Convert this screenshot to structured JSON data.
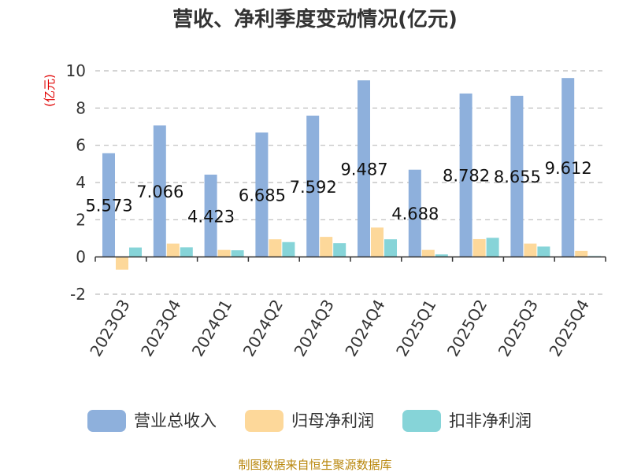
{
  "chart_data": {
    "type": "bar",
    "title": "营收、净利季度变动情况(亿元)",
    "ylabel": "(亿元)",
    "categories": [
      "2023Q3",
      "2023Q4",
      "2024Q1",
      "2024Q2",
      "2024Q3",
      "2024Q4",
      "2025Q1",
      "2025Q2",
      "2025Q3",
      "2025Q4"
    ],
    "ylim": [
      -2,
      10
    ],
    "yticks": [
      -2,
      0,
      2,
      4,
      6,
      8,
      10
    ],
    "grid": true,
    "legend_position": "bottom",
    "series": [
      {
        "name": "营业总收入",
        "color": "#8eb0dc",
        "values": [
          5.573,
          7.066,
          4.423,
          6.685,
          7.592,
          9.487,
          4.688,
          8.782,
          8.655,
          9.612
        ],
        "labels": [
          "5.573",
          "7.066",
          "4.423",
          "6.685",
          "7.592",
          "9.487",
          "4.688",
          "8.782",
          "8.655",
          "9.612"
        ]
      },
      {
        "name": "归母净利润",
        "color": "#fdd89a",
        "values": [
          -0.68,
          0.72,
          0.38,
          0.95,
          1.08,
          1.58,
          0.38,
          0.96,
          0.72,
          0.33
        ]
      },
      {
        "name": "扣非净利润",
        "color": "#86d4d8",
        "values": [
          0.51,
          0.52,
          0.36,
          0.8,
          0.74,
          0.95,
          0.14,
          1.03,
          0.56,
          0.05
        ]
      }
    ],
    "source": "制图数据来自恒生聚源数据库"
  }
}
